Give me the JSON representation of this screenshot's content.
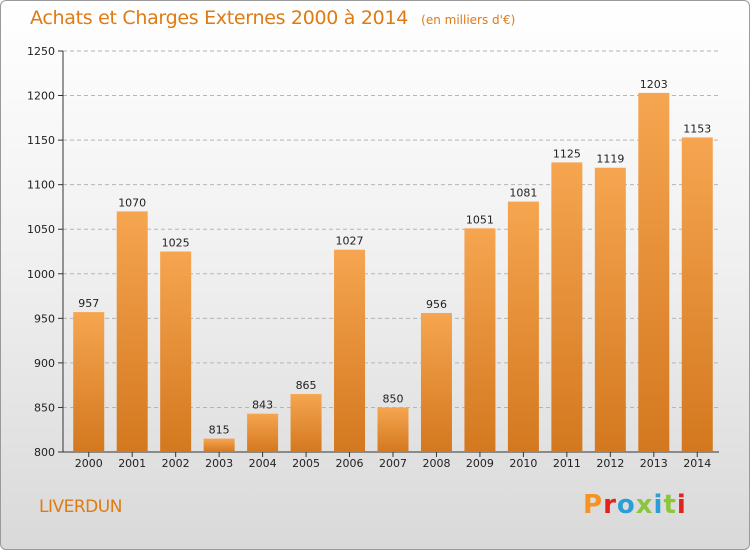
{
  "header": {
    "title": "Achats et Charges Externes 2000 à 2014",
    "subtitle": "(en milliers d'€)"
  },
  "footer": {
    "town": "LIVERDUN",
    "brand": "Proxiti",
    "brand_colors": [
      "#f7931e",
      "#e2231a",
      "#2a9fd6",
      "#8cc63f",
      "#2a9fd6",
      "#8cc63f",
      "#e2231a"
    ]
  },
  "colors": {
    "accent": "#e07a12",
    "bar_light": "#f6a550",
    "bar_dark": "#d3781f",
    "grid": "#b5b5b5"
  },
  "chart_data": {
    "type": "bar",
    "title": "Achats et Charges Externes 2000 à 2014",
    "subtitle": "(en milliers d'€)",
    "xlabel": "",
    "ylabel": "",
    "categories": [
      "2000",
      "2001",
      "2002",
      "2003",
      "2004",
      "2005",
      "2006",
      "2007",
      "2008",
      "2009",
      "2010",
      "2011",
      "2012",
      "2013",
      "2014"
    ],
    "values": [
      957,
      1070,
      1025,
      815,
      843,
      865,
      1027,
      850,
      956,
      1051,
      1081,
      1125,
      1119,
      1203,
      1153
    ],
    "ylim": [
      800,
      1250
    ],
    "yticks": [
      800,
      850,
      900,
      950,
      1000,
      1050,
      1100,
      1150,
      1200,
      1250
    ],
    "grid": true,
    "legend": "none"
  }
}
